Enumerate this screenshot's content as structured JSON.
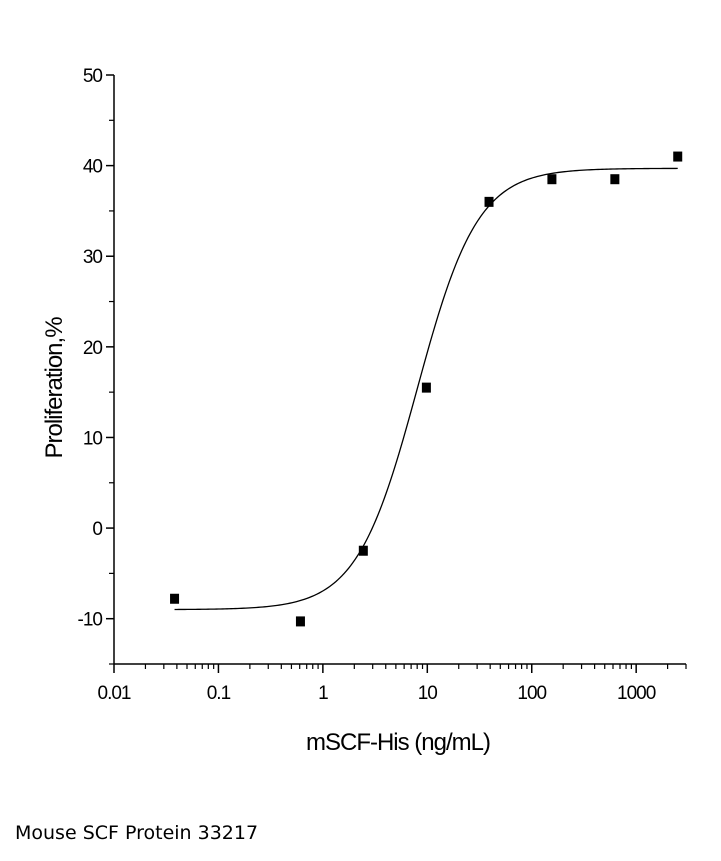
{
  "caption": "Mouse SCF Protein 33217",
  "chart_data": {
    "type": "scatter",
    "title": "",
    "xlabel": "mSCF-His (ng/mL)",
    "ylabel": "Proliferation,%",
    "xscale": "log",
    "xlim": [
      0.01,
      3000
    ],
    "ylim": [
      -15,
      50
    ],
    "xticks": [
      0.01,
      0.1,
      1,
      10,
      100,
      1000
    ],
    "xtick_labels": [
      "0.01",
      "0.1",
      "1",
      "10",
      "100",
      "1000"
    ],
    "yticks": [
      -10,
      0,
      10,
      20,
      30,
      40,
      50
    ],
    "ytick_labels": [
      "-10",
      "0",
      "10",
      "20",
      "30",
      "40",
      "50"
    ],
    "grid": false,
    "series": [
      {
        "marker": "square",
        "color": "#000000",
        "x": [
          0.038,
          0.61,
          2.44,
          9.8,
          39,
          156,
          625,
          2500
        ],
        "y": [
          -7.8,
          -10.3,
          -2.5,
          15.5,
          36,
          38.5,
          38.5,
          41
        ]
      }
    ],
    "fit_curve": {
      "model": "4-parameter logistic",
      "bottom": -9.0,
      "top": 39.7,
      "ec50": 8.0,
      "hill_slope": 1.5,
      "color": "#000000"
    }
  }
}
